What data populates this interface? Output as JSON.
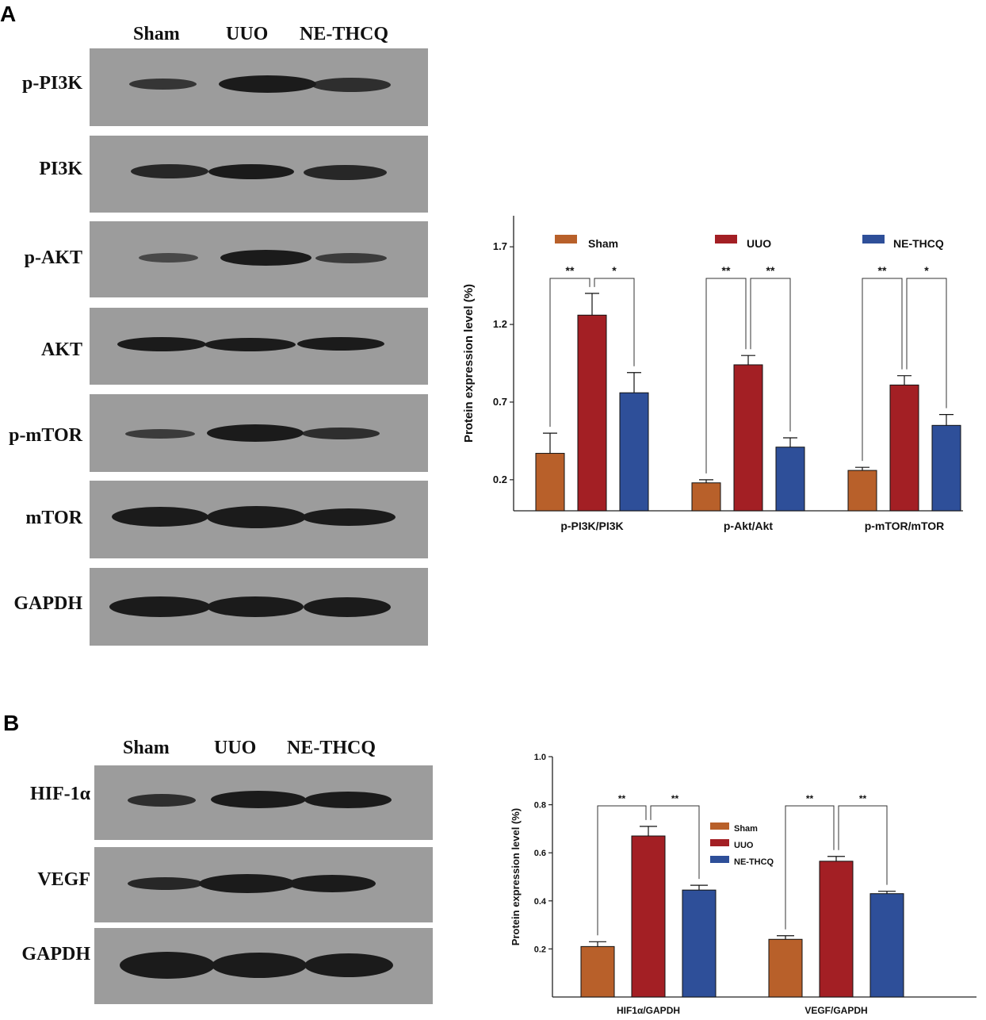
{
  "panels": [
    {
      "letter": "A",
      "lanes": [
        "Sham",
        "UUO",
        "NE-THCQ"
      ],
      "blot_rows": [
        "p-PI3K",
        "PI3K",
        "p-AKT",
        "AKT",
        "p-mTOR",
        "mTOR",
        "GAPDH"
      ]
    },
    {
      "letter": "B",
      "lanes": [
        "Sham",
        "UUO",
        "NE-THCQ"
      ],
      "blot_rows": [
        "HIF-1α",
        "VEGF",
        "GAPDH"
      ]
    }
  ],
  "chart_data": [
    {
      "type": "bar",
      "categories": [
        "p-PI3K/PI3K",
        "p-Akt/Akt",
        "p-mTOR/mTOR"
      ],
      "series": [
        {
          "name": "Sham",
          "color": "#b8602a",
          "values": [
            0.37,
            0.18,
            0.26
          ],
          "errors": [
            0.13,
            0.02,
            0.02
          ]
        },
        {
          "name": "UUO",
          "color": "#a31f24",
          "values": [
            1.26,
            0.94,
            0.81
          ],
          "errors": [
            0.14,
            0.06,
            0.06
          ]
        },
        {
          "name": "NE-THCQ",
          "color": "#2e4f99",
          "values": [
            0.76,
            0.41,
            0.55
          ],
          "errors": [
            0.13,
            0.06,
            0.07
          ]
        }
      ],
      "ylabel": "Protein expression level (%)",
      "ylim": [
        0.0,
        1.9
      ],
      "yticks": [
        "0.2",
        "0.7",
        "1.2",
        "1.7"
      ],
      "legend": "top",
      "significance": [
        [
          "**",
          "*"
        ],
        [
          "**",
          "**"
        ],
        [
          "**",
          "*"
        ]
      ]
    },
    {
      "type": "bar",
      "categories": [
        "HIF1α/GAPDH",
        "VEGF/GAPDH"
      ],
      "series": [
        {
          "name": "Sham",
          "color": "#b8602a",
          "values": [
            0.21,
            0.24
          ],
          "errors": [
            0.02,
            0.015
          ]
        },
        {
          "name": "UUO",
          "color": "#a31f24",
          "values": [
            0.67,
            0.565
          ],
          "errors": [
            0.04,
            0.02
          ]
        },
        {
          "name": "NE-THCQ",
          "color": "#2e4f99",
          "values": [
            0.445,
            0.43
          ],
          "errors": [
            0.02,
            0.01
          ]
        }
      ],
      "ylabel": "Protein expression level (%)",
      "ylim": [
        0.0,
        1.0
      ],
      "yticks": [
        "0.2",
        "0.4",
        "0.6",
        "0.8",
        "1.0"
      ],
      "legend": "right",
      "significance": [
        [
          "**",
          "**"
        ],
        [
          "**",
          "**"
        ]
      ]
    }
  ]
}
